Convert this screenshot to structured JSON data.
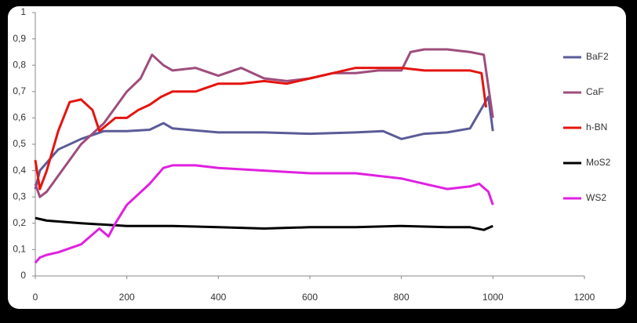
{
  "chart_data": {
    "type": "line",
    "xlim": [
      0,
      1200
    ],
    "xticks": [
      0,
      200,
      400,
      600,
      800,
      1000,
      1200
    ],
    "ylim": [
      0,
      1
    ],
    "yticks": [
      0,
      {
        "value": 0.1,
        "label": "0,1"
      },
      {
        "value": 0.2,
        "label": "0,2"
      },
      {
        "value": 0.3,
        "label": "0,3"
      },
      {
        "value": 0.4,
        "label": "0,4"
      },
      {
        "value": 0.5,
        "label": "0,5"
      },
      {
        "value": 0.6,
        "label": "0,6"
      },
      {
        "value": 0.7,
        "label": "0,7"
      },
      {
        "value": 0.8,
        "label": "0,8"
      },
      {
        "value": 0.9,
        "label": "0,9"
      },
      1
    ],
    "grid": false,
    "legend": "right",
    "series": [
      {
        "name": "BaF2",
        "color": "#5b5b99",
        "x": [
          0,
          10,
          25,
          50,
          100,
          150,
          200,
          250,
          280,
          300,
          400,
          500,
          600,
          700,
          760,
          800,
          850,
          900,
          950,
          970,
          990,
          1000
        ],
        "values": [
          0.33,
          0.4,
          0.43,
          0.48,
          0.52,
          0.55,
          0.55,
          0.555,
          0.58,
          0.56,
          0.545,
          0.545,
          0.54,
          0.545,
          0.55,
          0.52,
          0.54,
          0.545,
          0.56,
          0.62,
          0.68,
          0.55
        ]
      },
      {
        "name": "CaF",
        "color": "#9e4d7c",
        "x": [
          0,
          10,
          25,
          50,
          100,
          150,
          200,
          230,
          255,
          280,
          300,
          350,
          400,
          450,
          500,
          550,
          600,
          650,
          700,
          750,
          800,
          820,
          850,
          900,
          950,
          980,
          1000
        ],
        "values": [
          0.35,
          0.3,
          0.32,
          0.38,
          0.5,
          0.58,
          0.7,
          0.75,
          0.84,
          0.8,
          0.78,
          0.79,
          0.76,
          0.79,
          0.75,
          0.74,
          0.75,
          0.77,
          0.77,
          0.78,
          0.78,
          0.85,
          0.86,
          0.86,
          0.85,
          0.84,
          0.6
        ]
      },
      {
        "name": "h-BN",
        "color": "#e5140f",
        "x": [
          0,
          10,
          25,
          50,
          75,
          100,
          125,
          140,
          175,
          200,
          225,
          250,
          275,
          300,
          350,
          400,
          450,
          500,
          550,
          600,
          650,
          700,
          750,
          800,
          850,
          900,
          950,
          975,
          985
        ],
        "values": [
          0.44,
          0.33,
          0.4,
          0.55,
          0.66,
          0.67,
          0.63,
          0.55,
          0.6,
          0.6,
          0.63,
          0.65,
          0.68,
          0.7,
          0.7,
          0.73,
          0.73,
          0.74,
          0.73,
          0.75,
          0.77,
          0.79,
          0.79,
          0.79,
          0.78,
          0.78,
          0.78,
          0.77,
          0.64
        ]
      },
      {
        "name": "MoS2",
        "color": "#000000",
        "x": [
          0,
          25,
          100,
          200,
          300,
          400,
          500,
          600,
          700,
          800,
          900,
          950,
          980,
          1000
        ],
        "values": [
          0.22,
          0.21,
          0.2,
          0.19,
          0.19,
          0.185,
          0.18,
          0.185,
          0.185,
          0.19,
          0.185,
          0.185,
          0.175,
          0.19
        ]
      },
      {
        "name": "WS2",
        "color": "#e020e0",
        "x": [
          0,
          10,
          25,
          50,
          100,
          140,
          160,
          175,
          200,
          250,
          280,
          300,
          350,
          400,
          500,
          600,
          700,
          800,
          850,
          900,
          950,
          970,
          990,
          1000
        ],
        "values": [
          0.05,
          0.07,
          0.08,
          0.09,
          0.12,
          0.18,
          0.15,
          0.2,
          0.27,
          0.35,
          0.41,
          0.42,
          0.42,
          0.41,
          0.4,
          0.39,
          0.39,
          0.37,
          0.35,
          0.33,
          0.34,
          0.35,
          0.32,
          0.27
        ]
      }
    ]
  }
}
